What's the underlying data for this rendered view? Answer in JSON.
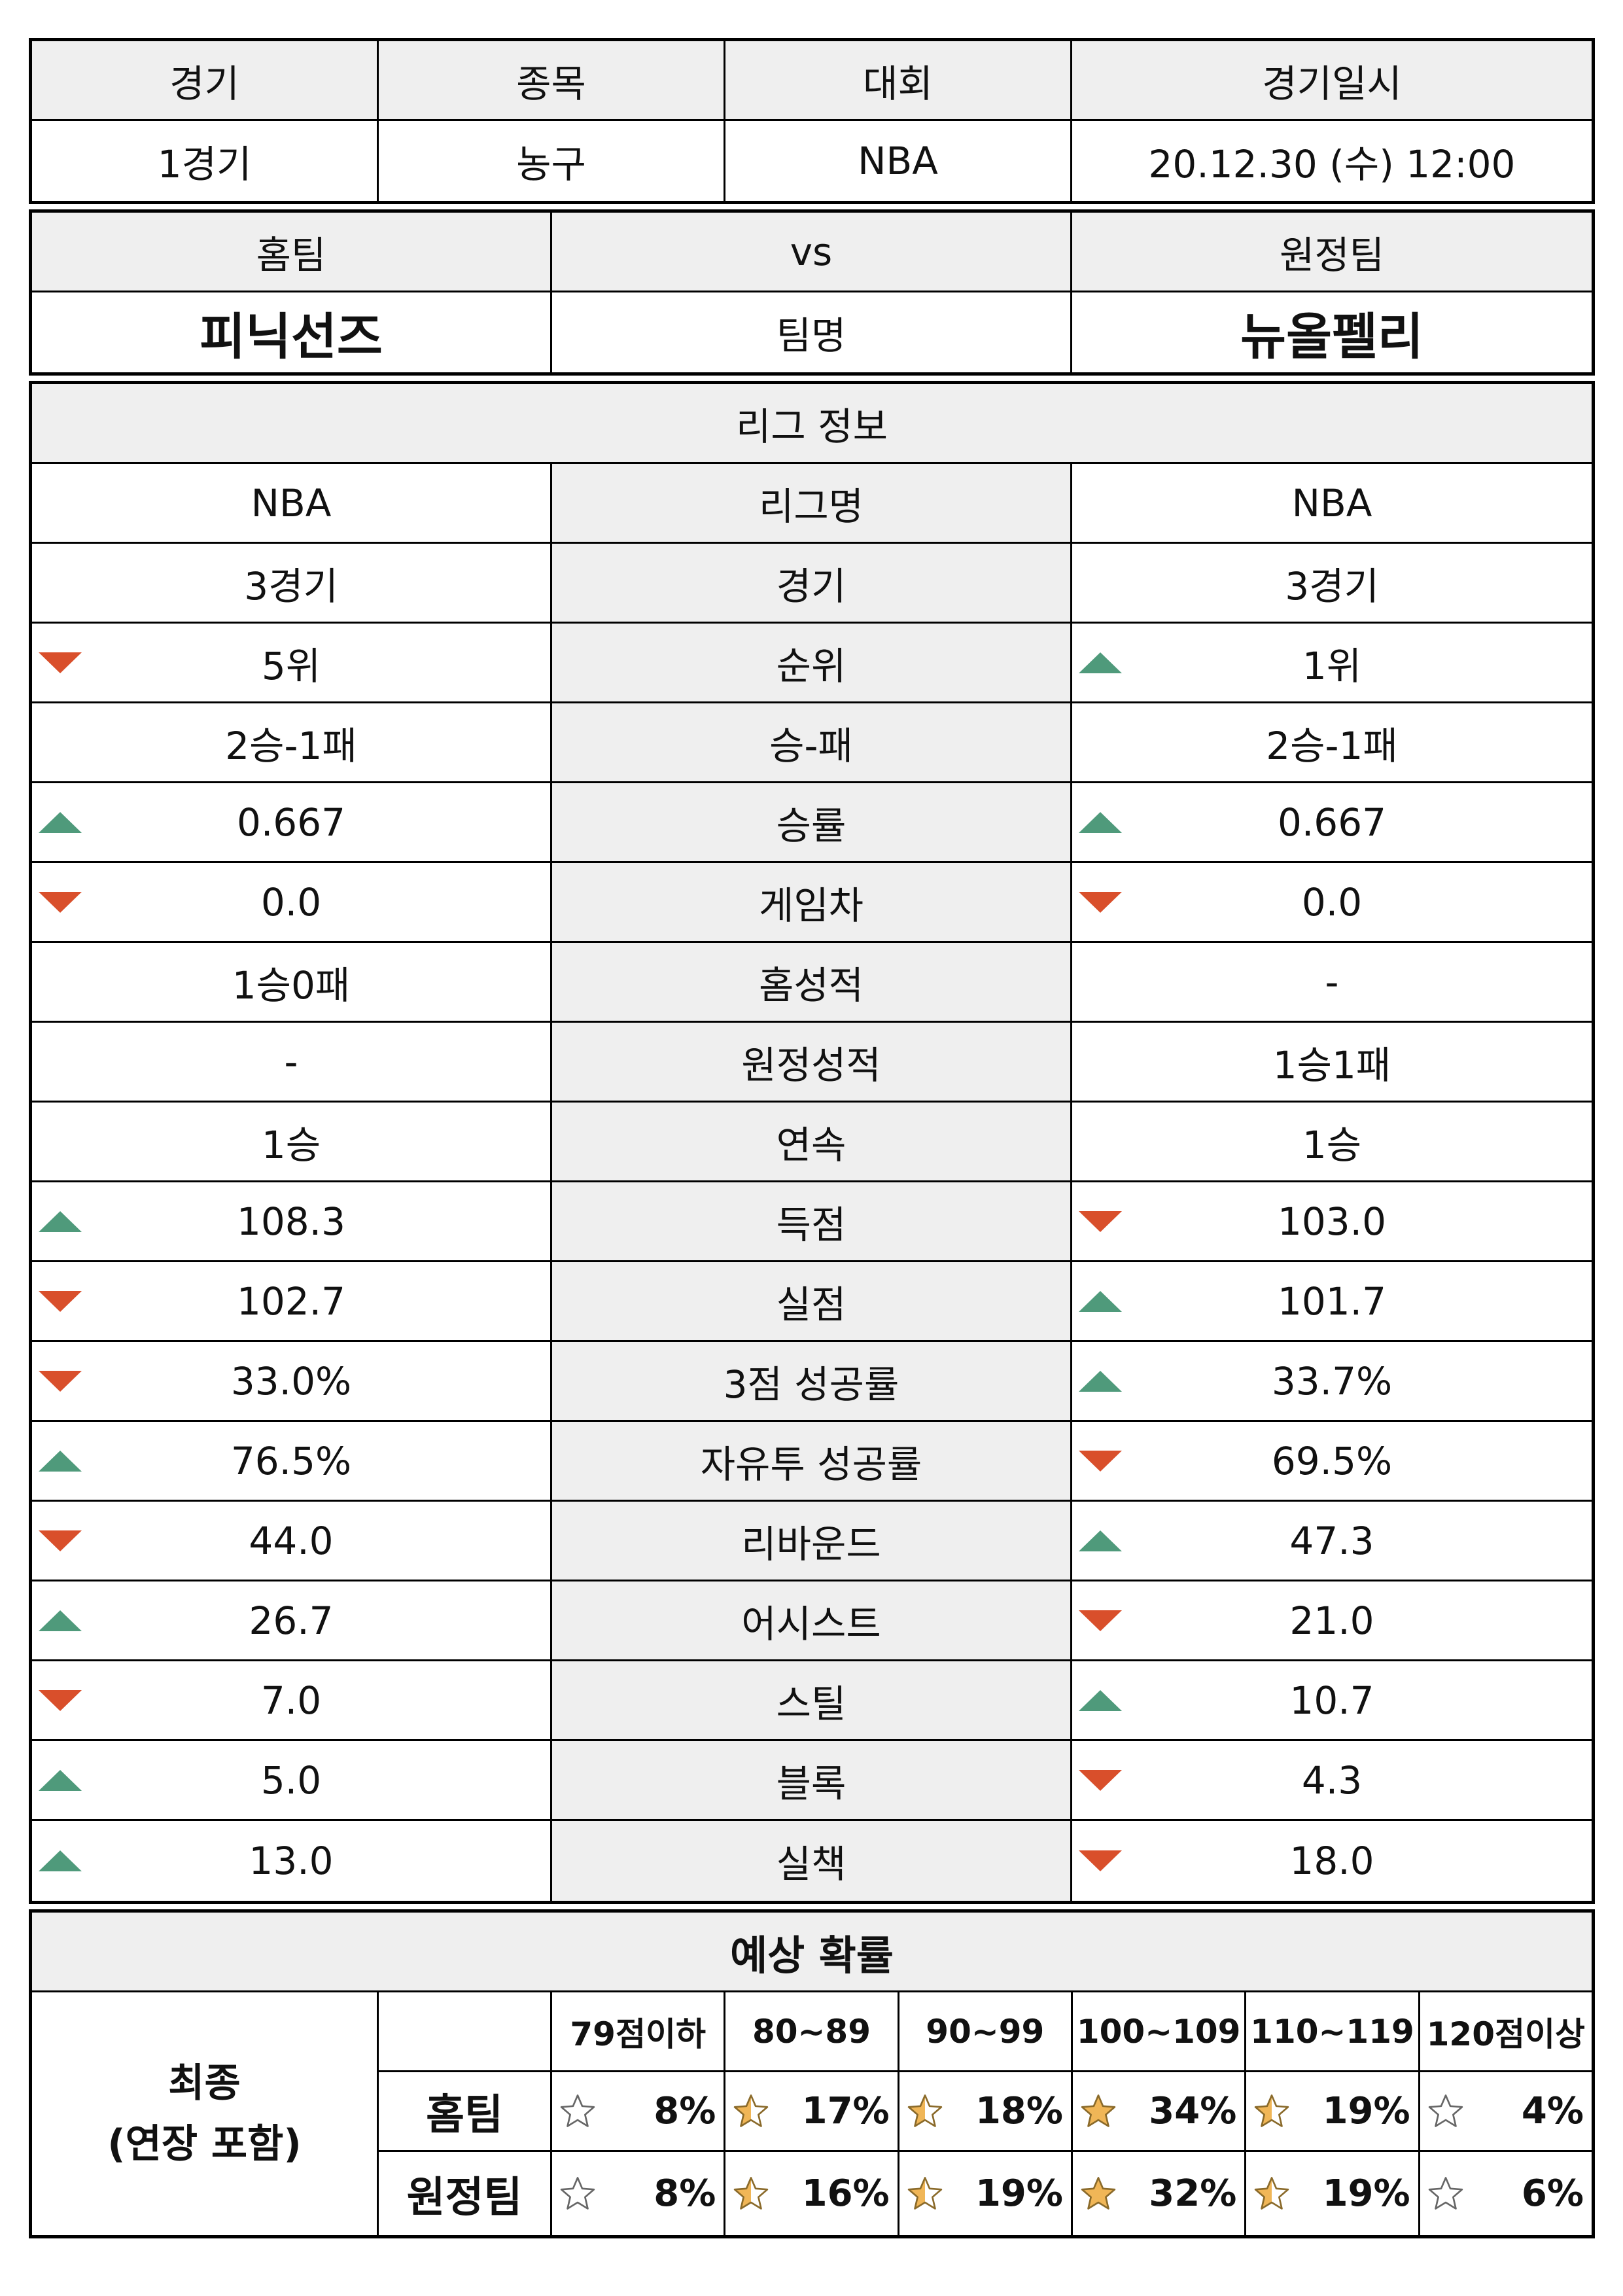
{
  "game_info": {
    "headers": [
      "경기",
      "종목",
      "대회",
      "경기일시"
    ],
    "values": [
      "1경기",
      "농구",
      "NBA",
      "20.12.30 (수) 12:00"
    ]
  },
  "teams": {
    "home_label": "홈팀",
    "vs_label": "vs",
    "away_label": "원정팀",
    "home_name": "피닉선즈",
    "name_label": "팀명",
    "away_name": "뉴올펠리"
  },
  "league": {
    "title": "리그 정보",
    "rows": [
      {
        "label": "리그명",
        "home": "NBA",
        "away": "NBA",
        "home_arrow": "",
        "away_arrow": ""
      },
      {
        "label": "경기",
        "home": "3경기",
        "away": "3경기",
        "home_arrow": "",
        "away_arrow": ""
      },
      {
        "label": "순위",
        "home": "5위",
        "away": "1위",
        "home_arrow": "down",
        "away_arrow": "up"
      },
      {
        "label": "승-패",
        "home": "2승-1패",
        "away": "2승-1패",
        "home_arrow": "",
        "away_arrow": ""
      },
      {
        "label": "승률",
        "home": "0.667",
        "away": "0.667",
        "home_arrow": "up",
        "away_arrow": "up"
      },
      {
        "label": "게임차",
        "home": "0.0",
        "away": "0.0",
        "home_arrow": "down",
        "away_arrow": "down"
      },
      {
        "label": "홈성적",
        "home": "1승0패",
        "away": "-",
        "home_arrow": "",
        "away_arrow": ""
      },
      {
        "label": "원정성적",
        "home": "-",
        "away": "1승1패",
        "home_arrow": "",
        "away_arrow": ""
      },
      {
        "label": "연속",
        "home": "1승",
        "away": "1승",
        "home_arrow": "",
        "away_arrow": ""
      },
      {
        "label": "득점",
        "home": "108.3",
        "away": "103.0",
        "home_arrow": "up",
        "away_arrow": "down"
      },
      {
        "label": "실점",
        "home": "102.7",
        "away": "101.7",
        "home_arrow": "down",
        "away_arrow": "up"
      },
      {
        "label": "3점  성공률",
        "home": "33.0%",
        "away": "33.7%",
        "home_arrow": "down",
        "away_arrow": "up"
      },
      {
        "label": "자유투  성공률",
        "home": "76.5%",
        "away": "69.5%",
        "home_arrow": "up",
        "away_arrow": "down"
      },
      {
        "label": "리바운드",
        "home": "44.0",
        "away": "47.3",
        "home_arrow": "down",
        "away_arrow": "up"
      },
      {
        "label": "어시스트",
        "home": "26.7",
        "away": "21.0",
        "home_arrow": "up",
        "away_arrow": "down"
      },
      {
        "label": "스틸",
        "home": "7.0",
        "away": "10.7",
        "home_arrow": "down",
        "away_arrow": "up"
      },
      {
        "label": "블록",
        "home": "5.0",
        "away": "4.3",
        "home_arrow": "up",
        "away_arrow": "down"
      },
      {
        "label": "실책",
        "home": "13.0",
        "away": "18.0",
        "home_arrow": "up",
        "away_arrow": "down"
      }
    ]
  },
  "probability": {
    "title": "예상  확률",
    "row_title_line1": "최종",
    "row_title_line2": "(연장  포함)",
    "ranges": [
      "79점이하",
      "80~89",
      "90~99",
      "100~109",
      "110~119",
      "120점이상"
    ],
    "home_label": "홈팀",
    "away_label": "원정팀",
    "home_values": [
      "8%",
      "17%",
      "18%",
      "34%",
      "19%",
      "4%"
    ],
    "away_values": [
      "8%",
      "16%",
      "19%",
      "32%",
      "19%",
      "6%"
    ],
    "home_stars": [
      "empty",
      "half",
      "half",
      "full",
      "half",
      "empty"
    ],
    "away_stars": [
      "empty",
      "half",
      "half",
      "full",
      "half",
      "empty"
    ]
  },
  "colors": {
    "up_arrow": "#4f9a7b",
    "down_arrow": "#d94f2b",
    "star_fill": "#f0b657",
    "header_bg": "#efefef"
  }
}
